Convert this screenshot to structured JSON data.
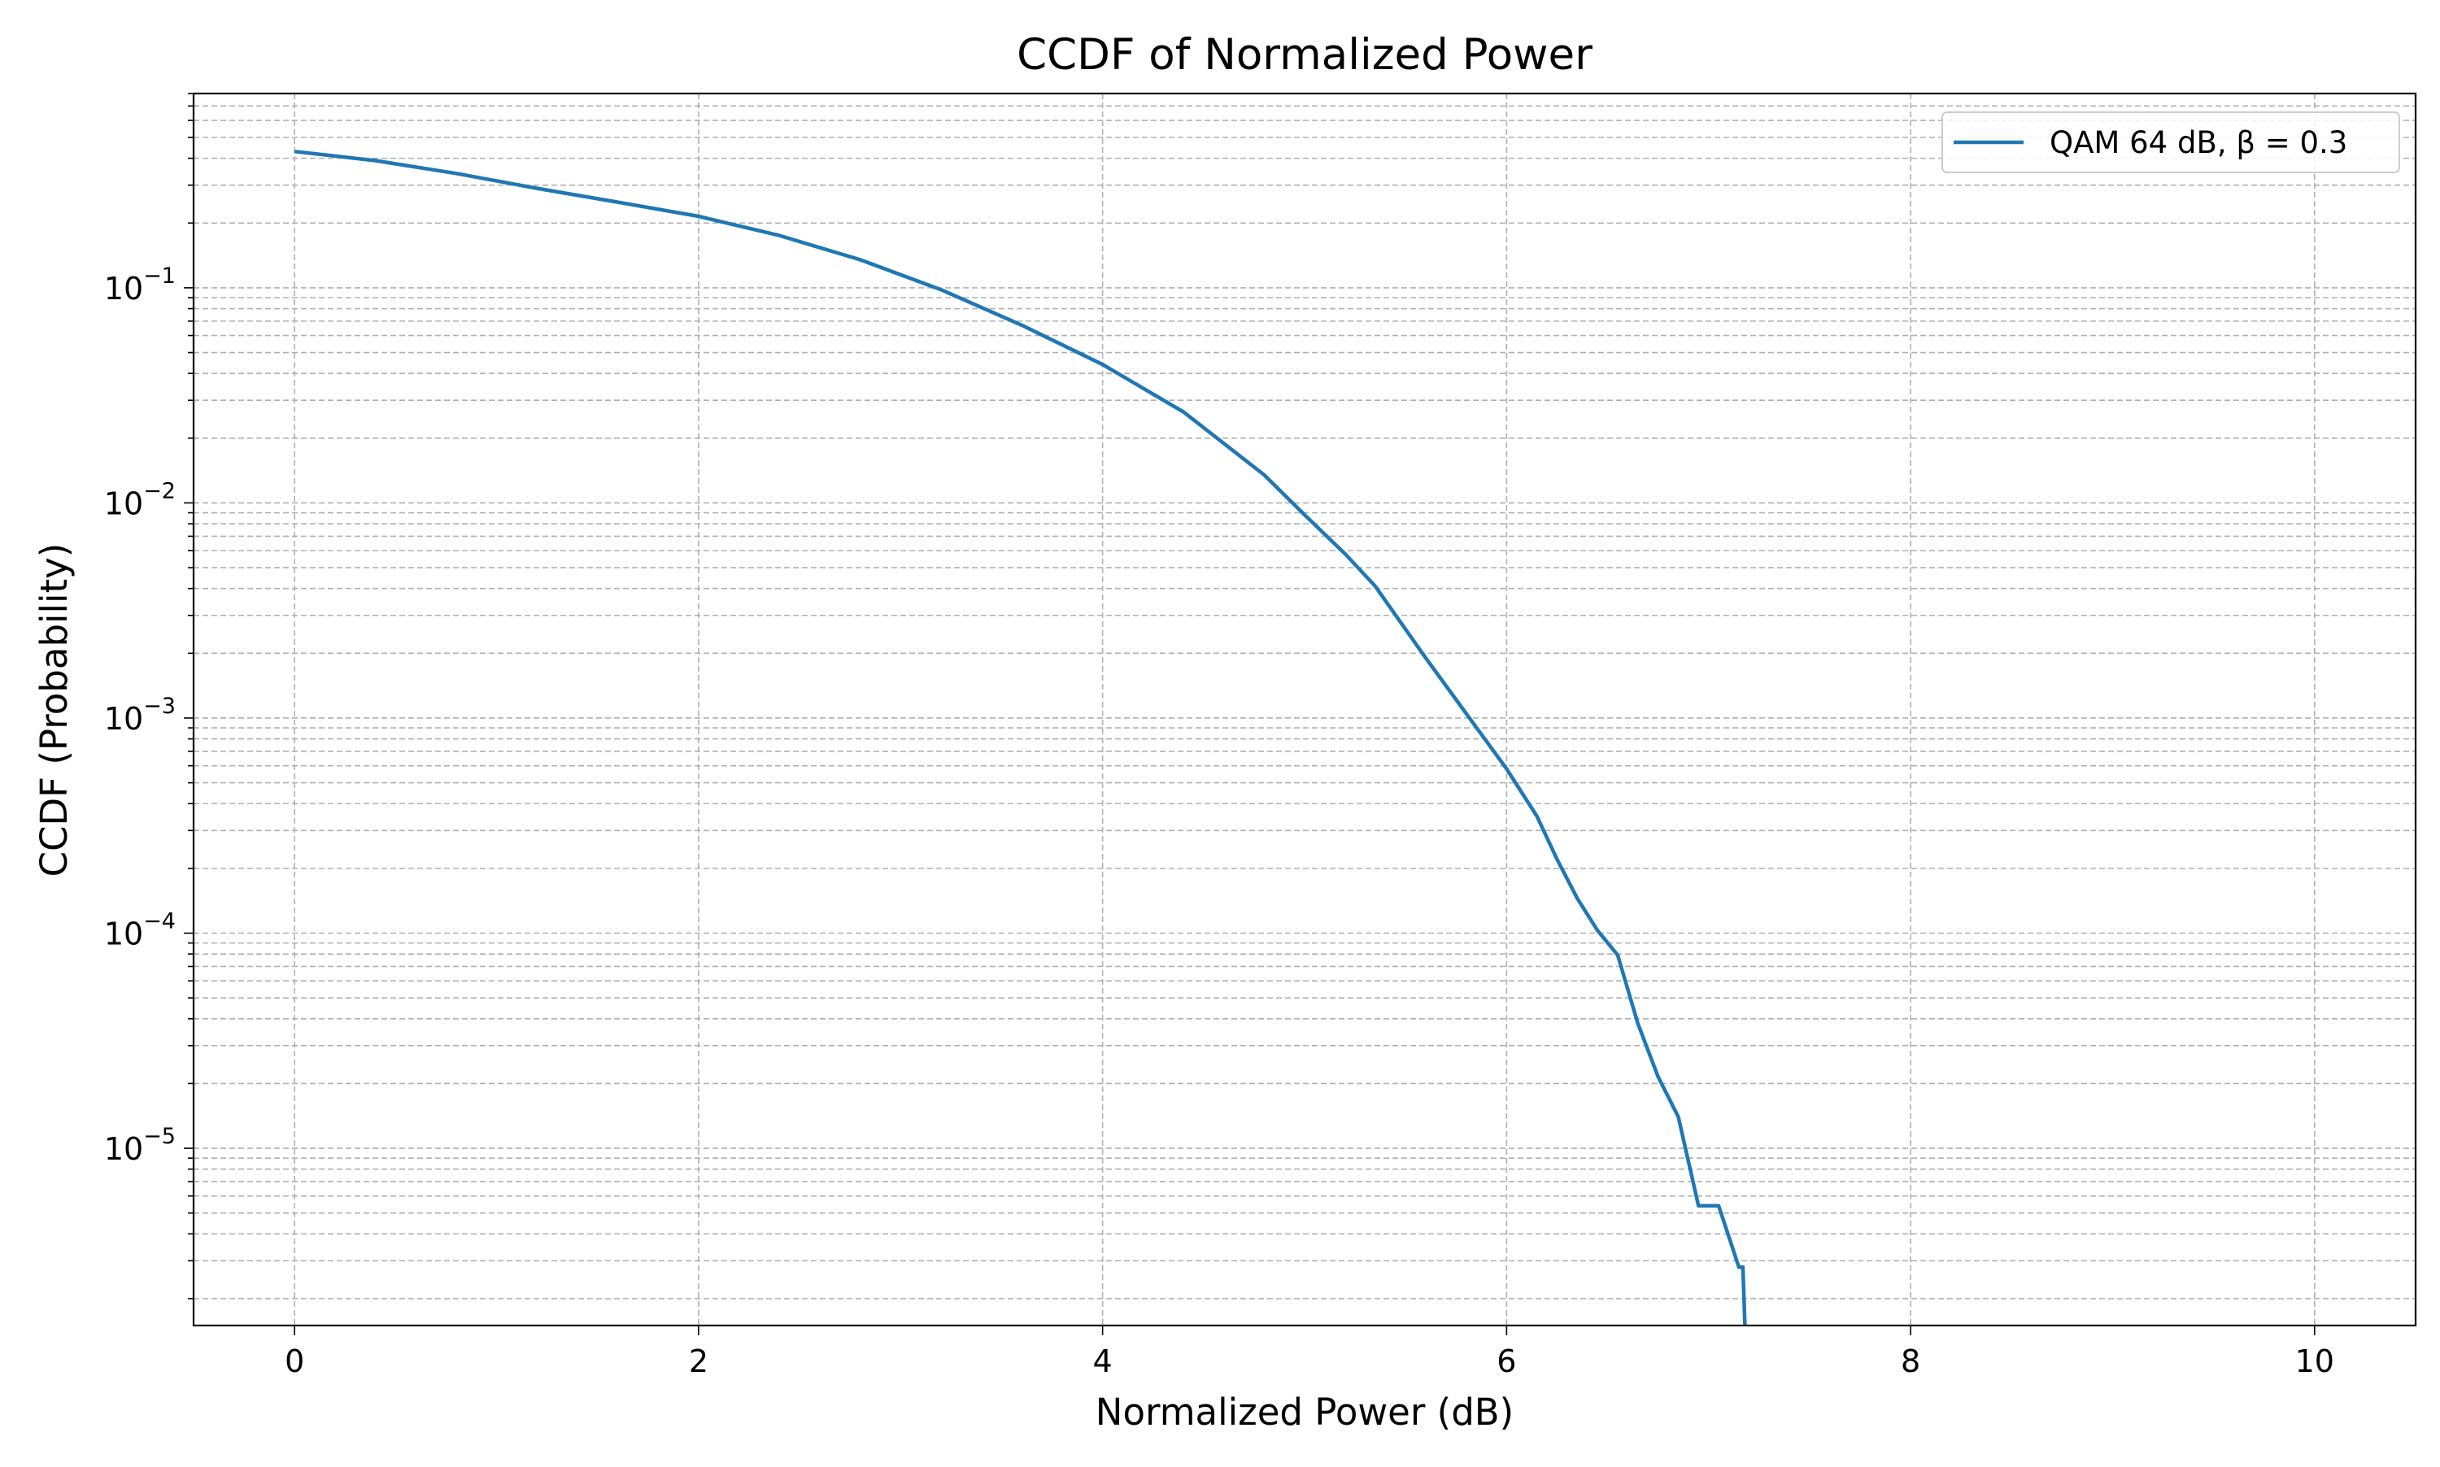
{
  "chart_data": {
    "type": "line",
    "title": "CCDF of Normalized Power",
    "xlabel": "Normalized Power (dB)",
    "ylabel": "CCDF (Probability)",
    "xlim": [
      -0.5,
      10.5
    ],
    "ylim": [
      1.5e-06,
      0.8
    ],
    "yscale": "log",
    "grid": true,
    "grid_minor": true,
    "legend_position": "top-right",
    "x_ticks": [
      0,
      2,
      4,
      6,
      8,
      10
    ],
    "y_ticks": [
      {
        "base": "10",
        "exp": "−1",
        "value": 0.1
      },
      {
        "base": "10",
        "exp": "−2",
        "value": 0.01
      },
      {
        "base": "10",
        "exp": "−3",
        "value": 0.001
      },
      {
        "base": "10",
        "exp": "−4",
        "value": 0.0001
      },
      {
        "base": "10",
        "exp": "−5",
        "value": 1e-05
      }
    ],
    "series": [
      {
        "name": "QAM 64 dB, β = 0.3",
        "color": "#1f77b4",
        "x": [
          0,
          0.4,
          0.8,
          1.2,
          1.6,
          2.0,
          2.4,
          2.8,
          3.2,
          3.6,
          4.0,
          4.4,
          4.8,
          5.0,
          5.2,
          5.35,
          5.6,
          5.8,
          6.0,
          6.15,
          6.25,
          6.35,
          6.45,
          6.55,
          6.65,
          6.75,
          6.85,
          6.95,
          7.05,
          7.15,
          7.17,
          7.18
        ],
        "y": [
          0.43,
          0.39,
          0.34,
          0.29,
          0.25,
          0.215,
          0.175,
          0.135,
          0.098,
          0.067,
          0.044,
          0.0265,
          0.0135,
          0.0088,
          0.0058,
          0.0041,
          0.0019,
          0.00105,
          0.00058,
          0.00035,
          0.00022,
          0.000145,
          0.000103,
          7.9e-05,
          3.8e-05,
          2.15e-05,
          1.4e-05,
          5.4e-06,
          5.4e-06,
          2.8e-06,
          2.8e-06,
          1.5e-06
        ]
      }
    ]
  }
}
